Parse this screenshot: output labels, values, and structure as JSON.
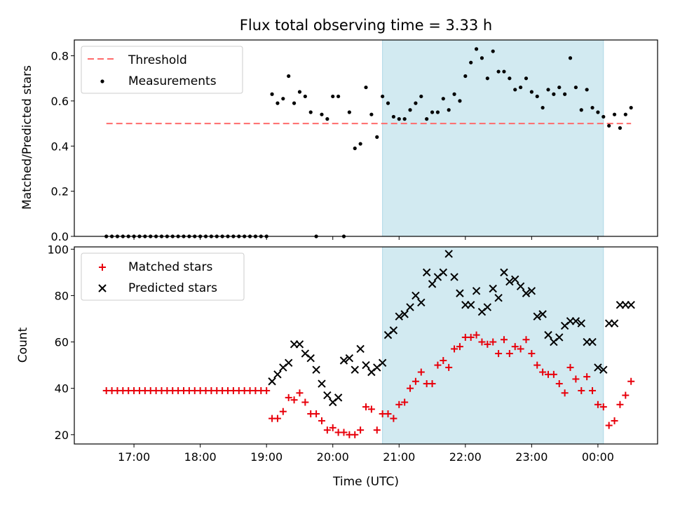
{
  "title": "Flux total observing time = 3.33 h",
  "colors": {
    "threshold": "#ff6b6b",
    "measurements": "#000000",
    "matched": "#e8000b",
    "predicted": "#000000",
    "shade": "#add8e6"
  },
  "chart_data": [
    {
      "type": "scatter",
      "panel": "top",
      "ylabel": "Matched/Predicted stars",
      "xlabel": "",
      "ylim": [
        0,
        0.87
      ],
      "yticks": [
        0.0,
        0.2,
        0.4,
        0.6,
        0.8
      ],
      "ytick_labels": [
        "0.0",
        "0.2",
        "0.4",
        "0.6",
        "0.8"
      ],
      "x_tick_labels": [],
      "shaded_span": {
        "start": "20:45",
        "end": "00:05"
      },
      "legend": {
        "position": "upper left",
        "entries": [
          "Threshold",
          "Measurements"
        ]
      },
      "series": [
        {
          "name": "Threshold",
          "style": "dashed-line",
          "x": [
            "16:35",
            "00:30"
          ],
          "y": [
            0.5,
            0.5
          ]
        },
        {
          "name": "Measurements",
          "style": "dots",
          "x": [
            "16:35",
            "16:40",
            "16:45",
            "16:50",
            "16:55",
            "17:00",
            "17:05",
            "17:10",
            "17:15",
            "17:20",
            "17:25",
            "17:30",
            "17:35",
            "17:40",
            "17:45",
            "17:50",
            "17:55",
            "18:00",
            "18:05",
            "18:10",
            "18:15",
            "18:20",
            "18:25",
            "18:30",
            "18:35",
            "18:40",
            "18:45",
            "18:50",
            "18:55",
            "19:00",
            "19:05",
            "19:10",
            "19:15",
            "19:20",
            "19:25",
            "19:30",
            "19:35",
            "19:40",
            "19:45",
            "19:50",
            "19:55",
            "20:00",
            "20:05",
            "20:10",
            "20:15",
            "20:20",
            "20:25",
            "20:30",
            "20:35",
            "20:40",
            "20:45",
            "20:50",
            "20:55",
            "21:00",
            "21:05",
            "21:10",
            "21:15",
            "21:20",
            "21:25",
            "21:30",
            "21:35",
            "21:40",
            "21:45",
            "21:50",
            "21:55",
            "22:00",
            "22:05",
            "22:10",
            "22:15",
            "22:20",
            "22:25",
            "22:30",
            "22:35",
            "22:40",
            "22:45",
            "22:50",
            "22:55",
            "23:00",
            "23:05",
            "23:10",
            "23:15",
            "23:20",
            "23:25",
            "23:30",
            "23:35",
            "23:40",
            "23:45",
            "23:50",
            "23:55",
            "00:00",
            "00:05",
            "00:10",
            "00:15",
            "00:20",
            "00:25",
            "00:30"
          ],
          "y": [
            0.0,
            0.0,
            0.0,
            0.0,
            0.0,
            0.0,
            0.0,
            0.0,
            0.0,
            0.0,
            0.0,
            0.0,
            0.0,
            0.0,
            0.0,
            0.0,
            0.0,
            0.0,
            0.0,
            0.0,
            0.0,
            0.0,
            0.0,
            0.0,
            0.0,
            0.0,
            0.0,
            0.0,
            0.0,
            0.0,
            0.63,
            0.59,
            0.61,
            0.71,
            0.59,
            0.64,
            0.62,
            0.55,
            0.0,
            0.54,
            0.52,
            0.62,
            0.62,
            0.0,
            0.55,
            0.39,
            0.41,
            0.66,
            0.54,
            0.44,
            0.62,
            0.59,
            0.53,
            0.52,
            0.52,
            0.56,
            0.59,
            0.62,
            0.52,
            0.55,
            0.55,
            0.61,
            0.56,
            0.63,
            0.6,
            0.71,
            0.77,
            0.83,
            0.79,
            0.7,
            0.82,
            0.73,
            0.73,
            0.7,
            0.65,
            0.66,
            0.7,
            0.64,
            0.62,
            0.57,
            0.65,
            0.63,
            0.66,
            0.63,
            0.79,
            0.66,
            0.56,
            0.65,
            0.57,
            0.55,
            0.53,
            0.49,
            0.54,
            0.48,
            0.54,
            0.57
          ]
        }
      ]
    },
    {
      "type": "scatter",
      "panel": "bottom",
      "ylabel": "Count",
      "xlabel": "Time (UTC)",
      "ylim": [
        16,
        101
      ],
      "yticks": [
        20,
        40,
        60,
        80,
        100
      ],
      "ytick_labels": [
        "20",
        "40",
        "60",
        "80",
        "100"
      ],
      "x_tick_labels": [
        "17:00",
        "18:00",
        "19:00",
        "20:00",
        "21:00",
        "22:00",
        "23:00",
        "00:00"
      ],
      "shaded_span": {
        "start": "20:45",
        "end": "00:05"
      },
      "legend": {
        "position": "upper left",
        "entries": [
          "Matched stars",
          "Predicted stars"
        ]
      },
      "series": [
        {
          "name": "Matched stars",
          "marker": "plus",
          "x": [
            "16:35",
            "16:40",
            "16:45",
            "16:50",
            "16:55",
            "17:00",
            "17:05",
            "17:10",
            "17:15",
            "17:20",
            "17:25",
            "17:30",
            "17:35",
            "17:40",
            "17:45",
            "17:50",
            "17:55",
            "18:00",
            "18:05",
            "18:10",
            "18:15",
            "18:20",
            "18:25",
            "18:30",
            "18:35",
            "18:40",
            "18:45",
            "18:50",
            "18:55",
            "19:00",
            "19:05",
            "19:10",
            "19:15",
            "19:20",
            "19:25",
            "19:30",
            "19:35",
            "19:40",
            "19:45",
            "19:50",
            "19:55",
            "20:00",
            "20:05",
            "20:10",
            "20:15",
            "20:20",
            "20:25",
            "20:30",
            "20:35",
            "20:40",
            "20:45",
            "20:50",
            "20:55",
            "21:00",
            "21:05",
            "21:10",
            "21:15",
            "21:20",
            "21:25",
            "21:30",
            "21:35",
            "21:40",
            "21:45",
            "21:50",
            "21:55",
            "22:00",
            "22:05",
            "22:10",
            "22:15",
            "22:20",
            "22:25",
            "22:30",
            "22:35",
            "22:40",
            "22:45",
            "22:50",
            "22:55",
            "23:00",
            "23:05",
            "23:10",
            "23:15",
            "23:20",
            "23:25",
            "23:30",
            "23:35",
            "23:40",
            "23:45",
            "23:50",
            "23:55",
            "00:00",
            "00:05",
            "00:10",
            "00:15",
            "00:20",
            "00:25",
            "00:30"
          ],
          "y": [
            39,
            39,
            39,
            39,
            39,
            39,
            39,
            39,
            39,
            39,
            39,
            39,
            39,
            39,
            39,
            39,
            39,
            39,
            39,
            39,
            39,
            39,
            39,
            39,
            39,
            39,
            39,
            39,
            39,
            39,
            27,
            27,
            30,
            36,
            35,
            38,
            34,
            29,
            29,
            26,
            22,
            23,
            21,
            21,
            20,
            20,
            22,
            32,
            31,
            22,
            29,
            29,
            27,
            33,
            34,
            40,
            43,
            47,
            42,
            42,
            50,
            52,
            49,
            57,
            58,
            62,
            62,
            63,
            60,
            59,
            60,
            55,
            61,
            55,
            58,
            57,
            61,
            55,
            50,
            47,
            46,
            46,
            42,
            38,
            49,
            44,
            39,
            45,
            39,
            33,
            32,
            24,
            26,
            33,
            37,
            43
          ]
        },
        {
          "name": "Predicted stars",
          "marker": "cross",
          "x": [
            "19:05",
            "19:10",
            "19:15",
            "19:20",
            "19:25",
            "19:30",
            "19:35",
            "19:40",
            "19:45",
            "19:50",
            "19:55",
            "20:00",
            "20:05",
            "20:10",
            "20:15",
            "20:20",
            "20:25",
            "20:30",
            "20:35",
            "20:40",
            "20:45",
            "20:50",
            "20:55",
            "21:00",
            "21:05",
            "21:10",
            "21:15",
            "21:20",
            "21:25",
            "21:30",
            "21:35",
            "21:40",
            "21:45",
            "21:50",
            "21:55",
            "22:00",
            "22:05",
            "22:10",
            "22:15",
            "22:20",
            "22:25",
            "22:30",
            "22:35",
            "22:40",
            "22:45",
            "22:50",
            "22:55",
            "23:00",
            "23:05",
            "23:10",
            "23:15",
            "23:20",
            "23:25",
            "23:30",
            "23:35",
            "23:40",
            "23:45",
            "23:50",
            "23:55",
            "00:00",
            "00:05",
            "00:10",
            "00:15",
            "00:20",
            "00:25",
            "00:30"
          ],
          "y": [
            43,
            46,
            49,
            51,
            59,
            59,
            55,
            53,
            48,
            42,
            37,
            34,
            36,
            52,
            53,
            48,
            57,
            50,
            47,
            49,
            51,
            63,
            65,
            71,
            72,
            75,
            80,
            77,
            90,
            85,
            88,
            90,
            98,
            88,
            81,
            76,
            76,
            82,
            73,
            75,
            83,
            79,
            90,
            86,
            87,
            84,
            81,
            82,
            71,
            72,
            63,
            60,
            62,
            67,
            69,
            69,
            68,
            60,
            60,
            49,
            48,
            68,
            68,
            76,
            76,
            76
          ]
        }
      ]
    }
  ]
}
